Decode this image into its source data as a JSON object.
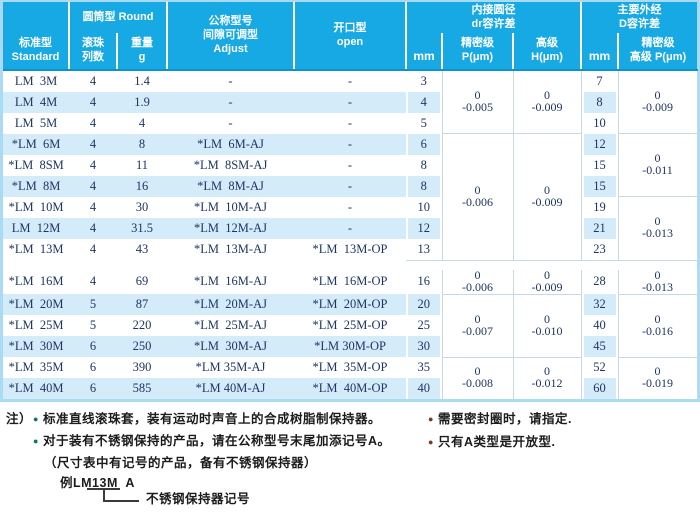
{
  "table": {
    "header": {
      "standard": "标准型\nStandard",
      "round_group": "圆筒型 Round",
      "ball_rows": "滚珠\n列数",
      "weight": "重量\ng",
      "adjust": "公称型号\n间隙可调型\nAdjust",
      "open": "开口型\nopen",
      "inner_group": "内接圆径\ndr容许差",
      "outer_group": "主要外经\nD容许差",
      "mm_inner": "mm",
      "precision_inner": "精密级\nP(μm)",
      "high_inner": "高级\nH(μm)",
      "mm_outer": "mm",
      "precision_outer": "精密级\n高级 P(μm)"
    },
    "zero": "0",
    "rows": [
      {
        "model": "LM  3M",
        "balls": "4",
        "weight": "1.4",
        "adjust": "-",
        "open": "-",
        "d": "3",
        "D": "7"
      },
      {
        "model": "LM  4M",
        "balls": "4",
        "weight": "1.9",
        "adjust": "-",
        "open": "-",
        "d": "4",
        "D": "8"
      },
      {
        "model": "LM  5M",
        "balls": "4",
        "weight": "4",
        "adjust": "-",
        "open": "-",
        "d": "5",
        "D": "10"
      },
      {
        "model": "*LM  6M",
        "balls": "4",
        "weight": "8",
        "adjust": "*LM  6M-AJ",
        "open": "-",
        "d": "6",
        "D": "12"
      },
      {
        "model": "*LM  8SM",
        "balls": "4",
        "weight": "11",
        "adjust": "*LM  8SM-AJ",
        "open": "-",
        "d": "8",
        "D": "15"
      },
      {
        "model": "*LM  8M",
        "balls": "4",
        "weight": "16",
        "adjust": "*LM  8M-AJ",
        "open": "-",
        "d": "8",
        "D": "15"
      },
      {
        "model": "*LM  10M",
        "balls": "4",
        "weight": "30",
        "adjust": "*LM  10M-AJ",
        "open": "-",
        "d": "10",
        "D": "19"
      },
      {
        "model": "LM  12M",
        "balls": "4",
        "weight": "31.5",
        "adjust": "*LM  12M-AJ",
        "open": "-",
        "d": "12",
        "D": "21"
      },
      {
        "model": "*LM  13M",
        "balls": "4",
        "weight": "43",
        "adjust": "*LM  13M-AJ",
        "open": "*LM  13M-OP",
        "d": "13",
        "D": "23"
      },
      {
        "model": "*LM  16M",
        "balls": "4",
        "weight": "69",
        "adjust": "*LM  16M-AJ",
        "open": "*LM  16M-OP",
        "d": "16",
        "D": "28"
      },
      {
        "model": "*LM  20M",
        "balls": "5",
        "weight": "87",
        "adjust": "*LM  20M-AJ",
        "open": "*LM  20M-OP",
        "d": "20",
        "D": "32"
      },
      {
        "model": "*LM  25M",
        "balls": "5",
        "weight": "220",
        "adjust": "*LM  25M-AJ",
        "open": "*LM  25M-OP",
        "d": "25",
        "D": "40"
      },
      {
        "model": "*LM  30M",
        "balls": "6",
        "weight": "250",
        "adjust": "*LM  30M-AJ",
        "open": "*LM 30M-OP",
        "d": "30",
        "D": "45"
      },
      {
        "model": "*LM  35M",
        "balls": "6",
        "weight": "390",
        "adjust": "*LM 35M-AJ",
        "open": "*LM  35M-OP",
        "d": "35",
        "D": "52"
      },
      {
        "model": "*LM  40M",
        "balls": "6",
        "weight": "585",
        "adjust": "*LM 40M-AJ",
        "open": "*LM  40M-OP",
        "d": "40",
        "D": "60"
      }
    ],
    "inner_tolerance_groups": [
      {
        "start": 0,
        "span": 3,
        "p": "-0.005",
        "h": "-0.009",
        "line": false
      },
      {
        "start": 3,
        "span": 6,
        "p": "-0.006",
        "h": "-0.009",
        "line": true
      },
      {
        "start": 9,
        "span": 1,
        "p": "-0.006",
        "h": "-0.009",
        "line": false
      },
      {
        "start": 10,
        "span": 3,
        "p": "-0.007",
        "h": "-0.010",
        "line": true
      },
      {
        "start": 13,
        "span": 2,
        "p": "-0.008",
        "h": "-0.012",
        "line": true
      }
    ],
    "outer_tolerance_groups": [
      {
        "start": 0,
        "span": 3,
        "v": "-0.009",
        "line": false
      },
      {
        "start": 3,
        "span": 3,
        "v": "-0.011",
        "line": true
      },
      {
        "start": 6,
        "span": 3,
        "v": "-0.013",
        "line": true
      },
      {
        "start": 9,
        "span": 1,
        "v": "-0.013",
        "line": false
      },
      {
        "start": 10,
        "span": 3,
        "v": "-0.016",
        "line": true
      },
      {
        "start": 13,
        "span": 2,
        "v": "-0.019",
        "line": true
      }
    ]
  },
  "notes": {
    "label": "注）",
    "left": [
      "标准直线滚珠套，装有运动时声音上的合成树脂制保持器。",
      "对于装有不锈钢保持的产品，请在公称型号末尾加添记号A。",
      "（尺寸表中有记号的产品，备有不锈钢保持器）"
    ],
    "example": "例LM13M  A",
    "example_caption": "不锈钢保持器记号",
    "right": [
      "需要密封圈时，请指定.",
      "只有A类型是开放型."
    ]
  },
  "colors": {
    "header_bg": "#17a9e3",
    "header_line": "#0d93cc",
    "stripe": "#d4ecf9",
    "data_text": "#1e3563",
    "grid_line": "#c6d9e4",
    "bullet_left": "#0c7668",
    "bullet_right": "#7a3b20"
  }
}
